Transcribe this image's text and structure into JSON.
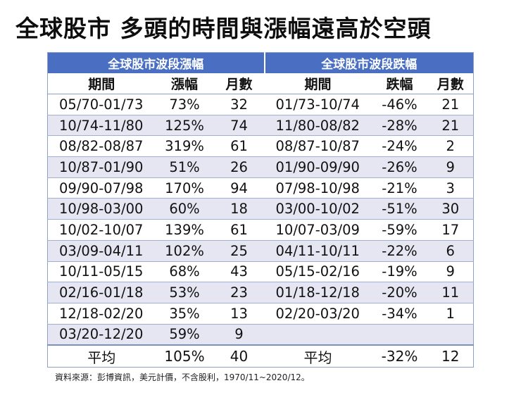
{
  "title": "全球股市 多頭的時間與漲幅遠高於空頭",
  "table": {
    "left_section": "全球股市波段漲幅",
    "right_section": "全球股市波段跌幅",
    "headers": [
      "期間",
      "漲幅",
      "月數",
      "期間",
      "跌幅",
      "月數"
    ],
    "rows": [
      [
        "05/70-01/73",
        "73%",
        "32",
        "01/73-10/74",
        "-46%",
        "21"
      ],
      [
        "10/74-11/80",
        "125%",
        "74",
        "11/80-08/82",
        "-28%",
        "21"
      ],
      [
        "08/82-08/87",
        "319%",
        "61",
        "08/87-10/87",
        "-24%",
        "2"
      ],
      [
        "10/87-01/90",
        "51%",
        "26",
        "01/90-09/90",
        "-26%",
        "9"
      ],
      [
        "09/90-07/98",
        "170%",
        "94",
        "07/98-10/98",
        "-21%",
        "3"
      ],
      [
        "10/98-03/00",
        "60%",
        "18",
        "03/00-10/02",
        "-51%",
        "30"
      ],
      [
        "10/02-10/07",
        "139%",
        "61",
        "10/07-03/09",
        "-59%",
        "17"
      ],
      [
        "03/09-04/11",
        "102%",
        "25",
        "04/11-10/11",
        "-22%",
        "6"
      ],
      [
        "10/11-05/15",
        "68%",
        "43",
        "05/15-02/16",
        "-19%",
        "9"
      ],
      [
        "02/16-01/18",
        "53%",
        "23",
        "01/18-12/18",
        "-20%",
        "11"
      ],
      [
        "12/18-02/20",
        "35%",
        "13",
        "02/20-03/20",
        "-34%",
        "1"
      ],
      [
        "03/20-12/20",
        "59%",
        "9",
        "",
        "",
        ""
      ]
    ],
    "average": [
      "平均",
      "105%",
      "40",
      "平均",
      "-32%",
      "12"
    ]
  },
  "footer": "資料來源：彭博資訊，美元計價，不含股利，1970/11~2020/12。",
  "colors": {
    "section_header_bg": "#4a6fc2",
    "stripe_bg": "#e5e6f2",
    "border": "#8da0c8"
  }
}
